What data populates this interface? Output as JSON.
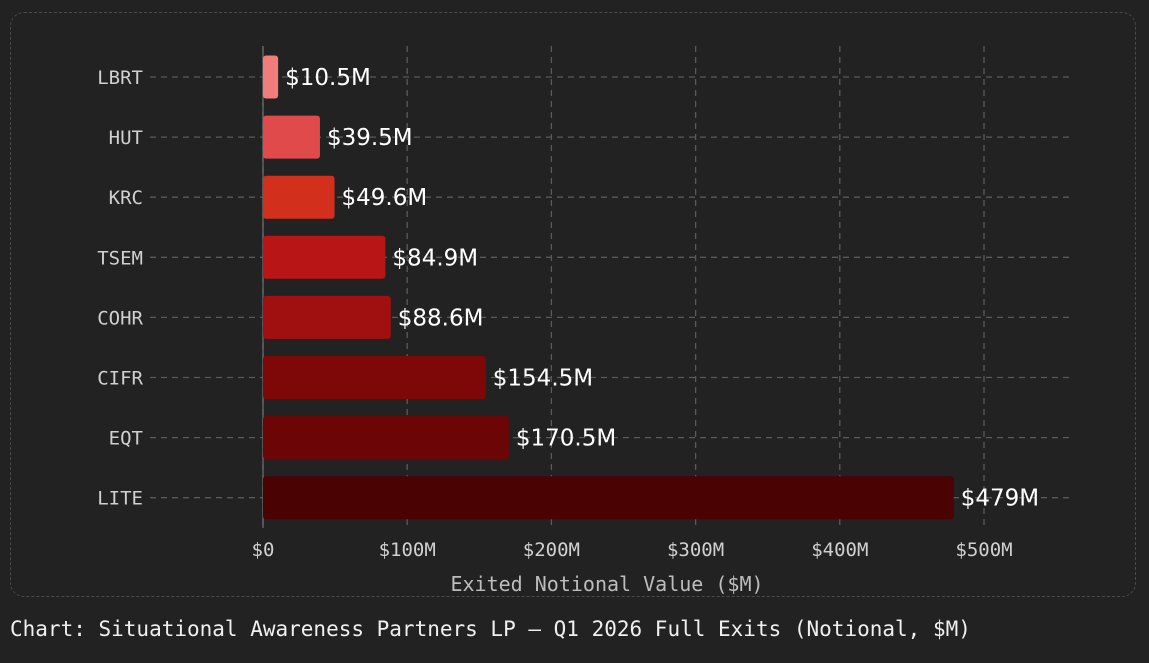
{
  "chart_data": {
    "type": "bar",
    "orientation": "horizontal",
    "categories": [
      "LBRT",
      "HUT",
      "KRC",
      "TSEM",
      "COHR",
      "CIFR",
      "EQT",
      "LITE"
    ],
    "values": [
      10.5,
      39.5,
      49.6,
      84.9,
      88.6,
      154.5,
      170.5,
      479
    ],
    "value_labels": [
      "$10.5M",
      "$39.5M",
      "$49.6M",
      "$84.9M",
      "$88.6M",
      "$154.5M",
      "$170.5M",
      "$479M"
    ],
    "bar_colors": [
      "#f07c7c",
      "#e04a4a",
      "#d2301c",
      "#b81616",
      "#a01010",
      "#7e0808",
      "#6c0606",
      "#4a0202"
    ],
    "xlabel": "Exited Notional Value ($M)",
    "ylabel": "",
    "xlim": [
      0,
      500
    ],
    "xticks": [
      0,
      100,
      200,
      300,
      400,
      500
    ],
    "xtick_labels": [
      "$0",
      "$100M",
      "$200M",
      "$300M",
      "$400M",
      "$500M"
    ],
    "grid": true
  },
  "caption": "Chart: Situational Awareness Partners LP — Q1 2026 Full Exits (Notional, $M)",
  "colors": {
    "background": "#222222",
    "grid": "#5a5a5a",
    "text": "#d0d0d0"
  }
}
